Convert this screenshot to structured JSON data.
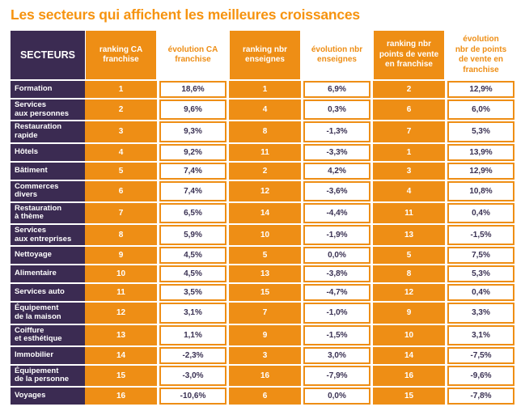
{
  "title": "Les secteurs qui affichent les meilleures croissances",
  "colors": {
    "orange": "#EE8E15",
    "title_orange": "#F6930F",
    "purple": "#3B2B52",
    "value_text": "#3A3153"
  },
  "table": {
    "sector_header": "SECTEURS",
    "column_headers": [
      {
        "label": "ranking CA\nfranchise",
        "type": "rank"
      },
      {
        "label": "évolution CA\nfranchise",
        "type": "evo"
      },
      {
        "label": "ranking nbr\nenseignes",
        "type": "rank"
      },
      {
        "label": "évolution nbr\nenseignes",
        "type": "evo"
      },
      {
        "label": "ranking nbr\npoints de vente\nen franchise",
        "type": "rank"
      },
      {
        "label": "évolution\nnbr de points\nde vente en\nfranchise",
        "type": "evo"
      }
    ],
    "rows": [
      {
        "sector": "Formation",
        "values": [
          "1",
          "18,6%",
          "1",
          "6,9%",
          "2",
          "12,9%"
        ]
      },
      {
        "sector": "Services\naux personnes",
        "values": [
          "2",
          "9,6%",
          "4",
          "0,3%",
          "6",
          "6,0%"
        ]
      },
      {
        "sector": "Restauration\nrapide",
        "values": [
          "3",
          "9,3%",
          "8",
          "-1,3%",
          "7",
          "5,3%"
        ]
      },
      {
        "sector": "Hôtels",
        "values": [
          "4",
          "9,2%",
          "11",
          "-3,3%",
          "1",
          "13,9%"
        ]
      },
      {
        "sector": "Bâtiment",
        "values": [
          "5",
          "7,4%",
          "2",
          "4,2%",
          "3",
          "12,9%"
        ]
      },
      {
        "sector": "Commerces\ndivers",
        "values": [
          "6",
          "7,4%",
          "12",
          "-3,6%",
          "4",
          "10,8%"
        ]
      },
      {
        "sector": "Restauration\nà thème",
        "values": [
          "7",
          "6,5%",
          "14",
          "-4,4%",
          "11",
          "0,4%"
        ]
      },
      {
        "sector": "Services\naux entreprises",
        "values": [
          "8",
          "5,9%",
          "10",
          "-1,9%",
          "13",
          "-1,5%"
        ]
      },
      {
        "sector": "Nettoyage",
        "values": [
          "9",
          "4,5%",
          "5",
          "0,0%",
          "5",
          "7,5%"
        ]
      },
      {
        "sector": "Alimentaire",
        "values": [
          "10",
          "4,5%",
          "13",
          "-3,8%",
          "8",
          "5,3%"
        ]
      },
      {
        "sector": "Services auto",
        "values": [
          "11",
          "3,5%",
          "15",
          "-4,7%",
          "12",
          "0,4%"
        ]
      },
      {
        "sector": "Équipement\nde la maison",
        "values": [
          "12",
          "3,1%",
          "7",
          "-1,0%",
          "9",
          "3,3%"
        ]
      },
      {
        "sector": "Coiffure\net esthétique",
        "values": [
          "13",
          "1,1%",
          "9",
          "-1,5%",
          "10",
          "3,1%"
        ]
      },
      {
        "sector": "Immobilier",
        "values": [
          "14",
          "-2,3%",
          "3",
          "3,0%",
          "14",
          "-7,5%"
        ]
      },
      {
        "sector": "Équipement\nde la personne",
        "values": [
          "15",
          "-3,0%",
          "16",
          "-7,9%",
          "16",
          "-9,6%"
        ]
      },
      {
        "sector": "Voyages",
        "values": [
          "16",
          "-10,6%",
          "6",
          "0,0%",
          "15",
          "-7,8%"
        ]
      }
    ]
  },
  "chart_data": {
    "type": "table",
    "title": "Les secteurs qui affichent les meilleures croissances",
    "columns": [
      "SECTEURS",
      "ranking CA franchise",
      "évolution CA franchise",
      "ranking nbr enseignes",
      "évolution nbr enseignes",
      "ranking nbr points de vente en franchise",
      "évolution nbr de points de vente en franchise"
    ],
    "rows": [
      [
        "Formation",
        1,
        "18,6%",
        1,
        "6,9%",
        2,
        "12,9%"
      ],
      [
        "Services aux personnes",
        2,
        "9,6%",
        4,
        "0,3%",
        6,
        "6,0%"
      ],
      [
        "Restauration rapide",
        3,
        "9,3%",
        8,
        "-1,3%",
        7,
        "5,3%"
      ],
      [
        "Hôtels",
        4,
        "9,2%",
        11,
        "-3,3%",
        1,
        "13,9%"
      ],
      [
        "Bâtiment",
        5,
        "7,4%",
        2,
        "4,2%",
        3,
        "12,9%"
      ],
      [
        "Commerces divers",
        6,
        "7,4%",
        12,
        "-3,6%",
        4,
        "10,8%"
      ],
      [
        "Restauration à thème",
        7,
        "6,5%",
        14,
        "-4,4%",
        11,
        "0,4%"
      ],
      [
        "Services aux entreprises",
        8,
        "5,9%",
        10,
        "-1,9%",
        13,
        "-1,5%"
      ],
      [
        "Nettoyage",
        9,
        "4,5%",
        5,
        "0,0%",
        5,
        "7,5%"
      ],
      [
        "Alimentaire",
        10,
        "4,5%",
        13,
        "-3,8%",
        8,
        "5,3%"
      ],
      [
        "Services auto",
        11,
        "3,5%",
        15,
        "-4,7%",
        12,
        "0,4%"
      ],
      [
        "Équipement de la maison",
        12,
        "3,1%",
        7,
        "-1,0%",
        9,
        "3,3%"
      ],
      [
        "Coiffure et esthétique",
        13,
        "1,1%",
        9,
        "-1,5%",
        10,
        "3,1%"
      ],
      [
        "Immobilier",
        14,
        "-2,3%",
        3,
        "3,0%",
        14,
        "-7,5%"
      ],
      [
        "Équipement de la personne",
        15,
        "-3,0%",
        16,
        "-7,9%",
        16,
        "-9,6%"
      ],
      [
        "Voyages",
        16,
        "-10,6%",
        6,
        "0,0%",
        15,
        "-7,8%"
      ]
    ]
  }
}
